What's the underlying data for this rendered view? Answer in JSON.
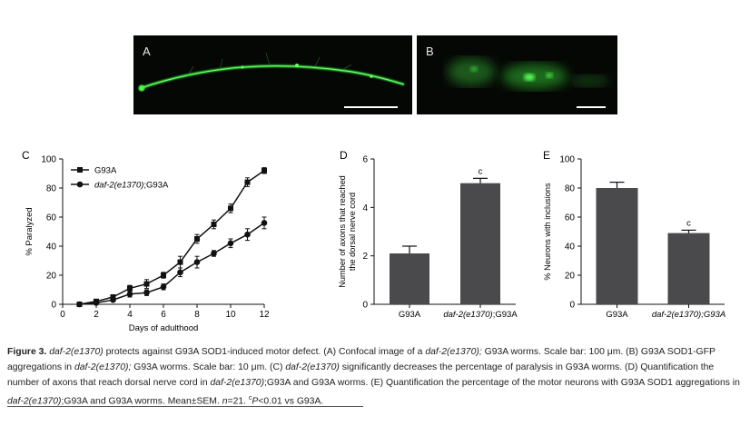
{
  "panel_a": {
    "letter": "A"
  },
  "panel_b": {
    "letter": "B"
  },
  "chart_data": [
    {
      "panel": "C",
      "type": "line",
      "x": [
        1,
        2,
        3,
        4,
        5,
        6,
        7,
        8,
        9,
        10,
        11,
        12
      ],
      "xlabel": "Days of adulthood",
      "ylabel": "% Paralyzed",
      "xlim": [
        0,
        12
      ],
      "ylim": [
        0,
        100
      ],
      "xticks": [
        0,
        2,
        4,
        6,
        8,
        10,
        12
      ],
      "yticks": [
        0,
        20,
        40,
        60,
        80,
        100
      ],
      "legend_position": "top-left",
      "series": [
        {
          "name": "G93A",
          "marker": "square",
          "values": [
            0,
            2,
            5,
            11,
            14,
            20,
            29,
            45,
            55,
            66,
            84,
            92
          ],
          "errors": [
            1,
            1,
            1,
            2,
            3,
            2,
            4,
            3,
            3,
            3,
            3,
            2
          ]
        },
        {
          "name_prefix": "daf-2(e1370)",
          "name_suffix": ";G93A",
          "marker": "circle",
          "values": [
            0,
            1,
            3,
            7,
            8,
            12,
            22,
            29,
            35,
            42,
            48,
            56
          ],
          "errors": [
            1,
            1,
            1,
            2,
            2,
            2,
            3,
            4,
            2,
            3,
            4,
            4
          ]
        }
      ]
    },
    {
      "panel": "D",
      "type": "bar",
      "categories": [
        "G93A",
        "daf-2(e1370);G93A"
      ],
      "category_italic": [
        "",
        "daf-2(e1370)"
      ],
      "category_plain": [
        "G93A",
        ";G93A"
      ],
      "values": [
        2.1,
        5.0
      ],
      "errors": [
        0.3,
        0.2
      ],
      "annotations": [
        "",
        "c"
      ],
      "ylabel_lines": [
        "Number of axons that reached",
        "the dorsal nerve cord"
      ],
      "ylim": [
        0,
        6
      ],
      "yticks": [
        0,
        2,
        4,
        6
      ]
    },
    {
      "panel": "E",
      "type": "bar",
      "categories": [
        "G93A",
        "daf-2(e1370);G93A"
      ],
      "category_italic": [
        "",
        "daf-2(e1370);G93A"
      ],
      "category_plain": [
        "G93A",
        ""
      ],
      "values": [
        80,
        49
      ],
      "errors": [
        4,
        2
      ],
      "annotations": [
        "",
        "c"
      ],
      "ylabel": "% Neurons with inclusions",
      "ylim": [
        0,
        100
      ],
      "yticks": [
        0,
        20,
        40,
        60,
        80,
        100
      ]
    }
  ],
  "caption": {
    "figure_label": "Figure 3.",
    "s1_i": "daf-2(e1370)",
    "s1": " protects against G93A SOD1-induced motor defect.  (A) Confocal image of a ",
    "s2_i": "daf-2(e1370);",
    "s2": " G93A worms.  Scale bar: 100 μm.  (B) G93A SOD1-GFP aggregations in ",
    "s3_i": "daf-2(e1370);",
    "s3": " G93A worms.  Scale bar: 10 μm.  (C) ",
    "s4_i": "daf-2(e1370)",
    "s4": " significantly decreases the percentage of paralysis in G93A worms.  (D) Quantification the number of axons that reach dorsal nerve cord in ",
    "s5_i": "daf-2(e1370)",
    "s5": ";G93A and G93A worms.  (E) Quantification the percentage of the motor neurons with G93A SOD1 aggregations in ",
    "s6_i": "daf-2(e1370)",
    "s6": ";G93A and G93A worms.  Mean±SEM.  ",
    "s7_i": "n",
    "s7": "=21.  ",
    "s8_sup": "c",
    "s8_i": "P",
    "s8": "<0.01 vs G93A."
  },
  "colors": {
    "bar": "#4a4a4c",
    "gfp": "#33ff33",
    "micro_bg": "#050705"
  }
}
